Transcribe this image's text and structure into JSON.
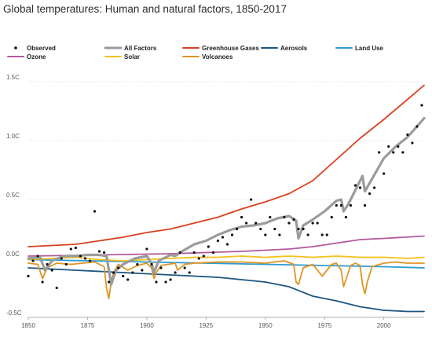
{
  "chart_data": {
    "type": "line",
    "title": "Global temperatures: Human and natural factors, 1850-2017",
    "xlabel": "",
    "ylabel": "",
    "xlim": [
      1850,
      2017
    ],
    "ylim": [
      -0.5,
      1.5
    ],
    "x_ticks": [
      {
        "value": 1850,
        "label": "1850"
      },
      {
        "value": 1875,
        "label": "1875"
      },
      {
        "value": 1900,
        "label": "1900"
      },
      {
        "value": 1925,
        "label": "1925"
      },
      {
        "value": 1950,
        "label": "1950"
      },
      {
        "value": 1975,
        "label": "1975"
      },
      {
        "value": 2000,
        "label": "2000"
      }
    ],
    "y_ticks": [
      {
        "value": -0.5,
        "label": "-0.5C"
      },
      {
        "value": 0.0,
        "label": "0.0C"
      },
      {
        "value": 0.5,
        "label": "0.5C"
      },
      {
        "value": 1.0,
        "label": "1.0C"
      },
      {
        "value": 1.5,
        "label": "1.5C"
      }
    ],
    "grid": true,
    "legend_position": "top",
    "series": [
      {
        "name": "Observed",
        "type": "scatter",
        "color": "#111111",
        "x": [
          1850,
          1852,
          1854,
          1856,
          1858,
          1860,
          1862,
          1864,
          1866,
          1868,
          1870,
          1872,
          1874,
          1876,
          1878,
          1880,
          1882,
          1884,
          1886,
          1888,
          1890,
          1892,
          1894,
          1896,
          1898,
          1900,
          1902,
          1904,
          1906,
          1908,
          1910,
          1912,
          1914,
          1916,
          1918,
          1920,
          1922,
          1924,
          1926,
          1928,
          1930,
          1932,
          1934,
          1936,
          1938,
          1940,
          1942,
          1944,
          1946,
          1948,
          1950,
          1952,
          1954,
          1956,
          1958,
          1960,
          1962,
          1964,
          1966,
          1968,
          1970,
          1972,
          1974,
          1976,
          1978,
          1980,
          1982,
          1984,
          1986,
          1988,
          1990,
          1992,
          1994,
          1996,
          1998,
          2000,
          2002,
          2004,
          2006,
          2008,
          2010,
          2012,
          2014,
          2016
        ],
        "y": [
          -0.15,
          -0.02,
          0.02,
          -0.2,
          -0.05,
          -0.1,
          -0.25,
          0.0,
          -0.05,
          0.08,
          0.09,
          0.02,
          0.0,
          -0.02,
          0.4,
          0.06,
          0.05,
          -0.2,
          -0.12,
          -0.08,
          -0.15,
          -0.18,
          -0.12,
          -0.05,
          -0.1,
          0.08,
          -0.05,
          -0.2,
          -0.08,
          -0.2,
          -0.18,
          -0.12,
          0.05,
          -0.08,
          -0.12,
          0.05,
          0.0,
          0.02,
          0.1,
          0.05,
          0.15,
          0.18,
          0.12,
          0.2,
          0.25,
          0.35,
          0.3,
          0.5,
          0.3,
          0.25,
          0.2,
          0.35,
          0.25,
          0.2,
          0.35,
          0.3,
          0.33,
          0.25,
          0.25,
          0.2,
          0.3,
          0.3,
          0.2,
          0.2,
          0.35,
          0.45,
          0.45,
          0.35,
          0.45,
          0.62,
          0.6,
          0.45,
          0.55,
          0.6,
          0.9,
          0.72,
          0.95,
          0.9,
          0.95,
          0.9,
          1.05,
          0.98,
          1.12,
          1.3
        ]
      },
      {
        "name": "All Factors",
        "color": "#9b9b9b",
        "x": [
          1850,
          1855,
          1857,
          1860,
          1865,
          1870,
          1875,
          1880,
          1883,
          1885,
          1887,
          1890,
          1895,
          1900,
          1902,
          1903,
          1905,
          1910,
          1912,
          1914,
          1920,
          1925,
          1930,
          1935,
          1940,
          1945,
          1950,
          1955,
          1960,
          1963,
          1964,
          1966,
          1970,
          1975,
          1980,
          1982,
          1983,
          1985,
          1990,
          1991,
          1992,
          1994,
          2000,
          2005,
          2010,
          2017
        ],
        "y": [
          0.0,
          0.01,
          -0.1,
          -0.02,
          0.02,
          0.02,
          0.03,
          0.03,
          0.02,
          -0.22,
          -0.1,
          -0.05,
          0.0,
          0.02,
          -0.04,
          -0.12,
          -0.02,
          0.03,
          0.02,
          0.05,
          0.12,
          0.15,
          0.2,
          0.24,
          0.27,
          0.28,
          0.3,
          0.34,
          0.36,
          0.32,
          0.17,
          0.28,
          0.33,
          0.4,
          0.49,
          0.5,
          0.4,
          0.46,
          0.66,
          0.7,
          0.57,
          0.64,
          0.85,
          0.95,
          1.03,
          1.19
        ]
      },
      {
        "name": "Greenhouse Gases",
        "color": "#d9401f",
        "x": [
          1850,
          1860,
          1870,
          1880,
          1890,
          1900,
          1910,
          1920,
          1930,
          1940,
          1950,
          1960,
          1970,
          1980,
          1990,
          2000,
          2010,
          2017
        ],
        "y": [
          0.1,
          0.11,
          0.12,
          0.15,
          0.18,
          0.22,
          0.25,
          0.3,
          0.35,
          0.42,
          0.48,
          0.55,
          0.66,
          0.84,
          1.02,
          1.18,
          1.35,
          1.47
        ]
      },
      {
        "name": "Aerosols",
        "color": "#1c5682",
        "x": [
          1850,
          1870,
          1890,
          1910,
          1930,
          1940,
          1950,
          1960,
          1970,
          1980,
          1990,
          2000,
          2010,
          2017
        ],
        "y": [
          -0.08,
          -0.1,
          -0.12,
          -0.14,
          -0.16,
          -0.18,
          -0.2,
          -0.24,
          -0.32,
          -0.36,
          -0.41,
          -0.44,
          -0.45,
          -0.45
        ]
      },
      {
        "name": "Land Use",
        "color": "#2c9bd4",
        "x": [
          1850,
          1900,
          1950,
          2000,
          2017
        ],
        "y": [
          -0.01,
          -0.03,
          -0.05,
          -0.07,
          -0.08
        ]
      },
      {
        "name": "Ozone",
        "color": "#b05a9a",
        "x": [
          1850,
          1880,
          1910,
          1940,
          1960,
          1970,
          1980,
          1990,
          2000,
          2017
        ],
        "y": [
          0.02,
          0.03,
          0.04,
          0.06,
          0.08,
          0.1,
          0.13,
          0.16,
          0.17,
          0.19
        ]
      },
      {
        "name": "Solar",
        "color": "#f2c318",
        "x": [
          1850,
          1860,
          1870,
          1880,
          1890,
          1900,
          1910,
          1920,
          1930,
          1940,
          1950,
          1960,
          1970,
          1980,
          1990,
          2000,
          2010,
          2017
        ],
        "y": [
          -0.01,
          0.0,
          0.01,
          -0.01,
          -0.02,
          -0.01,
          0.0,
          0.01,
          0.01,
          0.02,
          0.01,
          0.02,
          0.01,
          0.02,
          0.01,
          0.01,
          0.0,
          0.01
        ]
      },
      {
        "name": "Volcanoes",
        "color": "#e0941f",
        "x": [
          1850,
          1854,
          1856,
          1858,
          1862,
          1868,
          1878,
          1882,
          1883,
          1884,
          1885,
          1886,
          1888,
          1892,
          1896,
          1900,
          1902,
          1903,
          1904,
          1906,
          1912,
          1913,
          1916,
          1920,
          1930,
          1940,
          1950,
          1958,
          1962,
          1963,
          1964,
          1966,
          1970,
          1974,
          1978,
          1980,
          1982,
          1983,
          1984,
          1986,
          1988,
          1990,
          1991,
          1992,
          1993,
          1995,
          2000,
          2005,
          2010,
          2017
        ],
        "y": [
          -0.04,
          -0.05,
          -0.17,
          -0.08,
          -0.04,
          -0.05,
          -0.03,
          -0.07,
          -0.25,
          -0.34,
          -0.2,
          -0.12,
          -0.05,
          -0.1,
          -0.06,
          -0.04,
          -0.08,
          -0.17,
          -0.12,
          -0.06,
          -0.04,
          -0.1,
          -0.05,
          -0.04,
          -0.03,
          -0.03,
          -0.04,
          -0.02,
          -0.05,
          -0.2,
          -0.22,
          -0.08,
          -0.05,
          -0.15,
          -0.05,
          -0.04,
          -0.1,
          -0.24,
          -0.18,
          -0.06,
          -0.04,
          -0.06,
          -0.22,
          -0.3,
          -0.2,
          -0.07,
          -0.04,
          -0.03,
          -0.04,
          -0.04
        ]
      }
    ],
    "legend": [
      {
        "name": "Observed",
        "marker": "dot",
        "color": "#111111"
      },
      {
        "name": "All Factors",
        "marker": "line",
        "color": "#9b9b9b"
      },
      {
        "name": "Greenhouse Gases",
        "marker": "line",
        "color": "#d9401f"
      },
      {
        "name": "Aerosols",
        "marker": "line",
        "color": "#1c5682"
      },
      {
        "name": "Land Use",
        "marker": "line",
        "color": "#2c9bd4"
      },
      {
        "name": "Ozone",
        "marker": "line",
        "color": "#b05a9a"
      },
      {
        "name": "Solar",
        "marker": "line",
        "color": "#f2c318"
      },
      {
        "name": "Volcanoes",
        "marker": "line",
        "color": "#e0941f"
      }
    ]
  }
}
